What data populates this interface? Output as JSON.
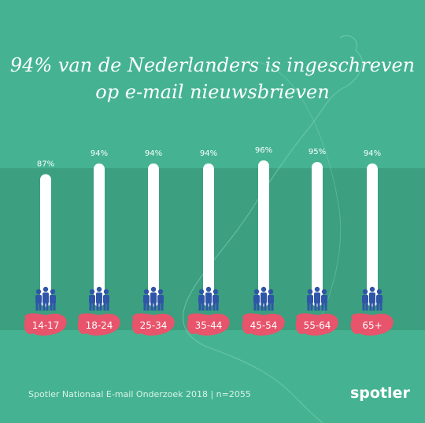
{
  "title": {
    "line1": "94% van de Nederlanders is ingeschreven",
    "line2": "op e-mail nieuwsbrieven"
  },
  "footer": "Spotler Nationaal E-mail Onderzoek 2018 | n=2055",
  "logo": "spotler",
  "colors": {
    "background": "#45b391",
    "band": "#3b9f80",
    "bar": "#ffffff",
    "people": "#2f56a6",
    "label_blob": "#e8546b"
  },
  "chart_data": {
    "type": "bar",
    "categories": [
      "14-17",
      "18-24",
      "25-34",
      "35-44",
      "45-54",
      "55-64",
      "65+"
    ],
    "values": [
      87,
      94,
      94,
      94,
      96,
      95,
      94
    ],
    "value_labels": [
      "87%",
      "94%",
      "94%",
      "94%",
      "96%",
      "95%",
      "94%"
    ],
    "title": "94% van de Nederlanders is ingeschreven op e-mail nieuwsbrieven",
    "ylim": [
      0,
      100
    ],
    "grid": false,
    "legend": "none",
    "icons": [
      "people-group-icon"
    ]
  }
}
